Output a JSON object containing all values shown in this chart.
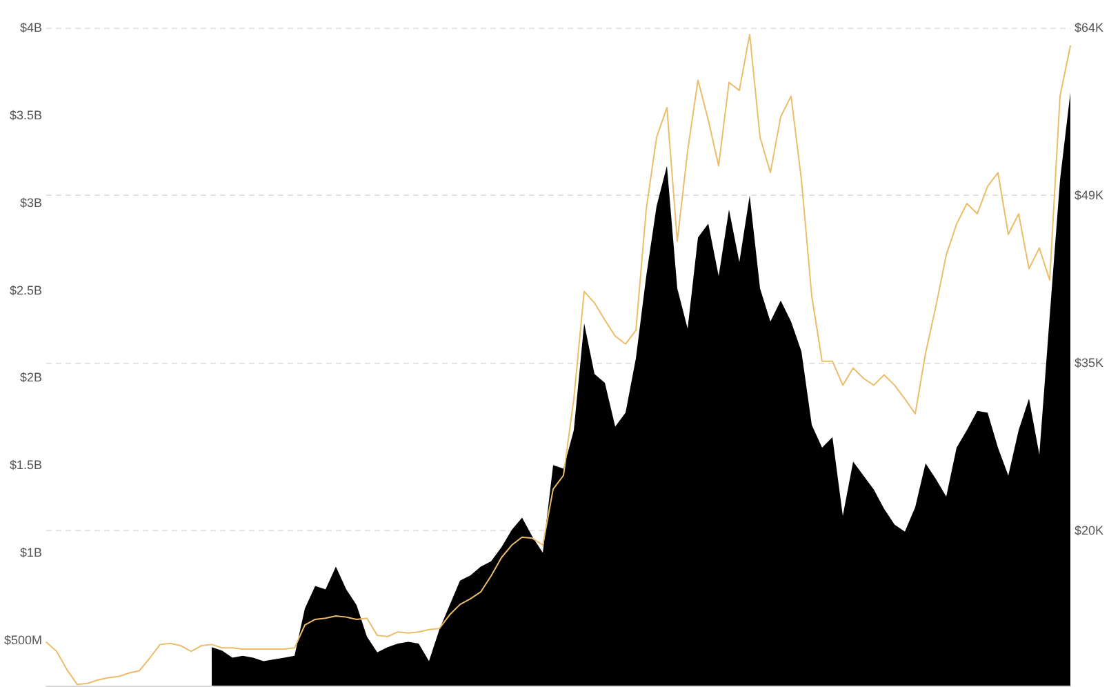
{
  "chart_data": {
    "type": "area",
    "categories": [
      null,
      null,
      null,
      null,
      null,
      null,
      null,
      null,
      null,
      null,
      null,
      null,
      null,
      null,
      null,
      null,
      null,
      null,
      null,
      null,
      null,
      null,
      null,
      null,
      null,
      null,
      null,
      null,
      null,
      null,
      null,
      null,
      null,
      null,
      null,
      null,
      null,
      null,
      null,
      null,
      null,
      null,
      null,
      null,
      null,
      null,
      null,
      null,
      null,
      null,
      null,
      null,
      null,
      null,
      null,
      null,
      null,
      null,
      null,
      null,
      null,
      null,
      null,
      null,
      null,
      null,
      null,
      null,
      null,
      null,
      null,
      null,
      null,
      null,
      null,
      null,
      null,
      null,
      null,
      null,
      null,
      null,
      null,
      null,
      null,
      null,
      null,
      null,
      null,
      null,
      null,
      null,
      null,
      null,
      null,
      null,
      null,
      null,
      null,
      null
    ],
    "series": [
      {
        "color": "#000000",
        "values": [
          null,
          null,
          null,
          null,
          null,
          null,
          null,
          null,
          null,
          null,
          null,
          null,
          null,
          null,
          null,
          null,
          460000000,
          440000000,
          400000000,
          410000000,
          400000000,
          380000000,
          390000000,
          400000000,
          410000000,
          680000000,
          810000000,
          790000000,
          920000000,
          790000000,
          700000000,
          520000000,
          430000000,
          460000000,
          480000000,
          490000000,
          480000000,
          380000000,
          560000000,
          700000000,
          840000000,
          870000000,
          920000000,
          950000000,
          1030000000,
          1130000000,
          1200000000,
          1090000000,
          1000000000,
          1500000000,
          1480000000,
          1700000000,
          2310000000,
          2020000000,
          1970000000,
          1720000000,
          1800000000,
          2110000000,
          2580000000,
          2980000000,
          3210000000,
          2510000000,
          2280000000,
          2800000000,
          2880000000,
          2580000000,
          2960000000,
          2660000000,
          3040000000,
          2510000000,
          2320000000,
          2440000000,
          2320000000,
          2150000000,
          1730000000,
          1600000000,
          1660000000,
          1210000000,
          1520000000,
          1440000000,
          1360000000,
          1250000000,
          1160000000,
          1120000000,
          1260000000,
          1510000000,
          1420000000,
          1320000000,
          1600000000,
          1700000000,
          1810000000,
          1800000000,
          1600000000,
          1440000000,
          1700000000,
          1880000000,
          1560000000,
          2350000000,
          3130000000,
          3630000000
        ]
      },
      {
        "type": "line",
        "axis": "y2",
        "color": "#ebbd6a",
        "values": [
          10.2,
          9.4,
          7.8,
          6.5,
          6.6,
          6.9,
          7.1,
          7.2,
          7.5,
          7.7,
          8.8,
          10.0,
          10.1,
          9.9,
          9.4,
          9.9,
          10.0,
          9.7,
          9.7,
          9.6,
          9.6,
          9.6,
          9.6,
          9.6,
          9.7,
          11.7,
          12.2,
          12.3,
          12.5,
          12.4,
          12.2,
          12.3,
          10.8,
          10.7,
          11.1,
          11.0,
          11.1,
          11.3,
          11.4,
          12.6,
          13.5,
          14.0,
          14.6,
          16.0,
          17.6,
          18.7,
          19.4,
          19.3,
          18.7,
          23.6,
          24.8,
          31.5,
          40.9,
          39.9,
          38.4,
          37.0,
          36.3,
          37.5,
          48.1,
          54.4,
          57.0,
          45.3,
          53.2,
          59.4,
          55.9,
          51.9,
          59.2,
          58.5,
          63.4,
          54.4,
          51.3,
          56.2,
          58.0,
          50.7,
          40.5,
          34.8,
          34.8,
          32.7,
          34.2,
          33.3,
          32.7,
          33.6,
          32.7,
          31.5,
          30.2,
          35.5,
          39.6,
          44.1,
          46.8,
          48.6,
          47.7,
          50.1,
          51.3,
          45.9,
          47.7,
          42.9,
          44.7,
          41.9,
          58.0,
          62.4
        ]
      }
    ],
    "ylim": [
      240000000,
      4000000000
    ],
    "yticks": [
      {
        "value": 500000000,
        "label": "$500M"
      },
      {
        "value": 1000000000,
        "label": "$1B"
      },
      {
        "value": 1500000000,
        "label": "$1.5B"
      },
      {
        "value": 2000000000,
        "label": "$2B"
      },
      {
        "value": 2500000000,
        "label": "$2.5B"
      },
      {
        "value": 3000000000,
        "label": "$3B"
      },
      {
        "value": 3500000000,
        "label": "$3.5B"
      },
      {
        "value": 4000000000,
        "label": "$4B"
      }
    ],
    "y2lim": [
      6.4,
      64
    ],
    "y2ticks": [
      {
        "value": 20,
        "label": "$20K"
      },
      {
        "value": 34.67,
        "label": "$35K"
      },
      {
        "value": 49.33,
        "label": "$49K"
      },
      {
        "value": 64,
        "label": "$64K"
      }
    ],
    "grid": "y",
    "marker": "none",
    "tick_labels": "y"
  }
}
